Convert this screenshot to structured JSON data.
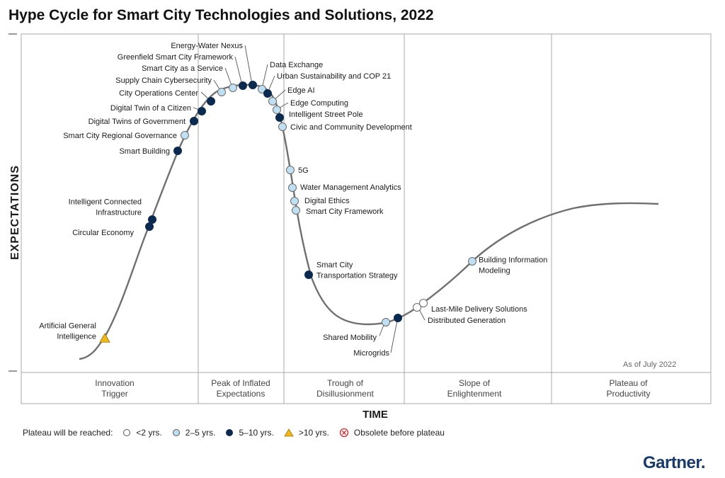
{
  "title": "Hype Cycle for Smart City Technologies and Solutions, 2022",
  "y_axis_label": "EXPECTATIONS",
  "x_axis_label": "TIME",
  "as_of": "As of July 2022",
  "phases": [
    {
      "label": "Innovation\nTrigger"
    },
    {
      "label": "Peak of Inflated\nExpectations"
    },
    {
      "label": "Trough of\nDisillusionment"
    },
    {
      "label": "Slope of\nEnlightenment"
    },
    {
      "label": "Plateau of\nProductivity"
    }
  ],
  "legend": {
    "title": "Plateau will be reached:",
    "items": [
      {
        "key": "lt2",
        "label": "<2 yrs."
      },
      {
        "key": "2to5",
        "label": "2–5 yrs."
      },
      {
        "key": "5to10",
        "label": "5–10 yrs."
      },
      {
        "key": "gt10",
        "label": ">10 yrs."
      },
      {
        "key": "obsolete",
        "label": "Obsolete before plateau"
      }
    ]
  },
  "colors": {
    "lt2": "#ffffff",
    "2to5": "#bfe0f2",
    "5to10": "#0b2a4f",
    "gt10": "#f2b817",
    "obsolete": "#d9262d",
    "curve": "#707070",
    "grid": "#a8a8a8",
    "logo": "#1a3a6e"
  },
  "technologies": [
    {
      "name": "Artificial General\nIntelligence",
      "category": "gt10"
    },
    {
      "name": "Circular Economy",
      "category": "5to10"
    },
    {
      "name": "Intelligent Connected\nInfrastructure",
      "category": "5to10"
    },
    {
      "name": "Smart Building",
      "category": "5to10"
    },
    {
      "name": "Smart City Regional Governance",
      "category": "2to5"
    },
    {
      "name": "Digital Twins of Government",
      "category": "5to10"
    },
    {
      "name": "Digital Twin of a Citizen",
      "category": "5to10"
    },
    {
      "name": "City Operations Center",
      "category": "5to10"
    },
    {
      "name": "Supply Chain Cybersecurity",
      "category": "2to5"
    },
    {
      "name": "Smart City as a Service",
      "category": "2to5"
    },
    {
      "name": "Greenfield Smart City Framework",
      "category": "5to10"
    },
    {
      "name": "Energy-Water Nexus",
      "category": "5to10"
    },
    {
      "name": "Data Exchange",
      "category": "2to5"
    },
    {
      "name": "Urban Sustainability and COP 21",
      "category": "5to10"
    },
    {
      "name": "Edge AI",
      "category": "2to5"
    },
    {
      "name": "Edge Computing",
      "category": "2to5"
    },
    {
      "name": "Intelligent Street Pole",
      "category": "5to10"
    },
    {
      "name": "Civic and Community Development",
      "category": "2to5"
    },
    {
      "name": "5G",
      "category": "2to5"
    },
    {
      "name": "Water Management Analytics",
      "category": "2to5"
    },
    {
      "name": "Digital Ethics",
      "category": "2to5"
    },
    {
      "name": "Smart City Framework",
      "category": "2to5"
    },
    {
      "name": "Smart City\nTransportation Strategy",
      "category": "5to10"
    },
    {
      "name": "Shared Mobility",
      "category": "2to5"
    },
    {
      "name": "Microgrids",
      "category": "5to10"
    },
    {
      "name": "Distributed Generation",
      "category": "lt2"
    },
    {
      "name": "Last-Mile Delivery Solutions",
      "category": "lt2"
    },
    {
      "name": "Building Information\nModeling",
      "category": "2to5"
    }
  ],
  "logo_text": "Gartner."
}
